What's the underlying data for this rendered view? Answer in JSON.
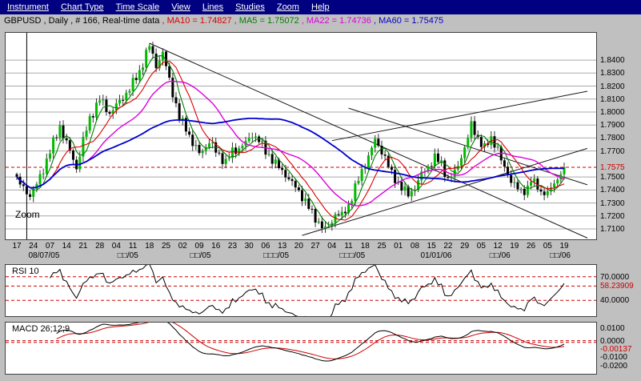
{
  "menu": {
    "bg": "#000080",
    "items": [
      "Instrument",
      "Chart Type",
      "Time Scale",
      "View",
      "Lines",
      "Studies",
      "Zoom",
      "Help"
    ]
  },
  "header": {
    "title": "GBPUSD , Daily , # 166, Real-time data ",
    "segments": [
      {
        "text": ", MA10 = 1.74827 ",
        "color": "#dd0000"
      },
      {
        "text": ", MA5 = 1.75072 ",
        "color": "#008000"
      },
      {
        "text": ", MA22 = 1.74736 ",
        "color": "#dd00dd"
      },
      {
        "text": ", MA60 = 1.75475",
        "color": "#0000cc"
      }
    ]
  },
  "main_chart": {
    "zoom_label": "Zoom",
    "price_labels": [
      {
        "text": "1.8400",
        "price": 1.84,
        "color": "#000000"
      },
      {
        "text": "1.8300",
        "price": 1.83,
        "color": "#000000"
      },
      {
        "text": "1.8200",
        "price": 1.82,
        "color": "#000000"
      },
      {
        "text": "1.8100",
        "price": 1.81,
        "color": "#000000"
      },
      {
        "text": "1.8000",
        "price": 1.8,
        "color": "#000000"
      },
      {
        "text": "1.7900",
        "price": 1.79,
        "color": "#000000"
      },
      {
        "text": "1.7800",
        "price": 1.78,
        "color": "#000000"
      },
      {
        "text": "1.7700",
        "price": 1.77,
        "color": "#000000"
      },
      {
        "text": "1.7575",
        "price": 1.7575,
        "color": "#cc0000"
      },
      {
        "text": "1.7500",
        "price": 1.75,
        "color": "#000000"
      },
      {
        "text": "1.7400",
        "price": 1.74,
        "color": "#000000"
      },
      {
        "text": "1.7300",
        "price": 1.73,
        "color": "#000000"
      },
      {
        "text": "1.7200",
        "price": 1.72,
        "color": "#000000"
      },
      {
        "text": "1.7100",
        "price": 1.71,
        "color": "#000000"
      }
    ]
  },
  "x_axis": {
    "week_ticks": [
      "17",
      "24",
      "07",
      "14",
      "21",
      "28",
      "04",
      "11",
      "18",
      "25",
      "02",
      "09",
      "16",
      "23",
      "30",
      "06",
      "13",
      "20",
      "27",
      "04",
      "11",
      "18",
      "25",
      "01",
      "08",
      "15",
      "22",
      "29",
      "05",
      "12",
      "19",
      "26",
      "05",
      "19"
    ],
    "month_labels": [
      {
        "text": "08/07/05",
        "pos": 0.065
      },
      {
        "text": "□□/05",
        "pos": 0.207
      },
      {
        "text": "□□/05",
        "pos": 0.33
      },
      {
        "text": "□□□/05",
        "pos": 0.458
      },
      {
        "text": "□□□/05",
        "pos": 0.587
      },
      {
        "text": "01/01/06",
        "pos": 0.729
      },
      {
        "text": "□□/06",
        "pos": 0.837
      },
      {
        "text": "□□/06",
        "pos": 0.939
      }
    ]
  },
  "rsi": {
    "label": "RSI 10",
    "range": [
      20,
      85
    ],
    "levels": [
      {
        "text": "70.0000",
        "value": 70,
        "color": "#000000",
        "dashed": true
      },
      {
        "text": "58.23909",
        "value": 58.23909,
        "color": "#cc0000",
        "dashed": true
      },
      {
        "text": "40.0000",
        "value": 40,
        "color": "#000000",
        "dashed": true
      }
    ]
  },
  "macd": {
    "label": "MACD 26;12;9",
    "range": [
      -0.0265,
      0.0145
    ],
    "levels": [
      {
        "text": "0.0100",
        "value": 0.01,
        "color": "#000000",
        "dashed": false
      },
      {
        "text": "0.0000",
        "value": 0.0,
        "color": "#000000",
        "dashed": true
      },
      {
        "text": "-0.00137",
        "value": -0.00137,
        "color": "#cc0000",
        "dashed": true
      },
      {
        "text": "-0.0100",
        "value": -0.01,
        "color": "#000000",
        "dashed": false
      },
      {
        "text": "-0.0200",
        "value": -0.02,
        "color": "#000000",
        "dashed": false
      }
    ]
  },
  "chart_data": {
    "type": "candlestick",
    "symbol": "GBPUSD",
    "timeframe": "Daily",
    "bar_count": 166,
    "data_feed": "Real-time data",
    "price_range": [
      1.702,
      1.861
    ],
    "last_price": 1.7575,
    "up_color": "#00bb00",
    "down_color": "#000000",
    "moving_averages": [
      {
        "name": "MA5",
        "period": 5,
        "last": 1.75072,
        "color": "#008000",
        "width": 1.1
      },
      {
        "name": "MA10",
        "period": 10,
        "last": 1.74827,
        "color": "#dd0000",
        "width": 1.1
      },
      {
        "name": "MA22",
        "period": 22,
        "last": 1.74736,
        "color": "#dd00dd",
        "width": 1.4
      },
      {
        "name": "MA60",
        "period": 60,
        "last": 1.75475,
        "color": "#0000cc",
        "width": 1.8
      }
    ],
    "close_anchors": [
      [
        0,
        1.748
      ],
      [
        2,
        1.741
      ],
      [
        4,
        1.736
      ],
      [
        6,
        1.744
      ],
      [
        8,
        1.756
      ],
      [
        10,
        1.77
      ],
      [
        13,
        1.789
      ],
      [
        15,
        1.776
      ],
      [
        18,
        1.757
      ],
      [
        20,
        1.778
      ],
      [
        22,
        1.795
      ],
      [
        25,
        1.81
      ],
      [
        28,
        1.799
      ],
      [
        31,
        1.808
      ],
      [
        34,
        1.818
      ],
      [
        37,
        1.831
      ],
      [
        39,
        1.845
      ],
      [
        40,
        1.851
      ],
      [
        42,
        1.836
      ],
      [
        44,
        1.845
      ],
      [
        47,
        1.815
      ],
      [
        49,
        1.795
      ],
      [
        51,
        1.788
      ],
      [
        53,
        1.776
      ],
      [
        55,
        1.768
      ],
      [
        58,
        1.777
      ],
      [
        60,
        1.77
      ],
      [
        63,
        1.761
      ],
      [
        65,
        1.77
      ],
      [
        67,
        1.772
      ],
      [
        69,
        1.776
      ],
      [
        71,
        1.783
      ],
      [
        73,
        1.778
      ],
      [
        75,
        1.77
      ],
      [
        78,
        1.76
      ],
      [
        81,
        1.752
      ],
      [
        83,
        1.745
      ],
      [
        85,
        1.739
      ],
      [
        87,
        1.731
      ],
      [
        89,
        1.722
      ],
      [
        91,
        1.715
      ],
      [
        93,
        1.709
      ],
      [
        95,
        1.716
      ],
      [
        96,
        1.722
      ],
      [
        98,
        1.72
      ],
      [
        100,
        1.728
      ],
      [
        101,
        1.735
      ],
      [
        103,
        1.748
      ],
      [
        105,
        1.76
      ],
      [
        107,
        1.772
      ],
      [
        108,
        1.778
      ],
      [
        110,
        1.77
      ],
      [
        111,
        1.765
      ],
      [
        113,
        1.752
      ],
      [
        116,
        1.742
      ],
      [
        118,
        1.736
      ],
      [
        120,
        1.742
      ],
      [
        122,
        1.752
      ],
      [
        124,
        1.758
      ],
      [
        126,
        1.765
      ],
      [
        128,
        1.76
      ],
      [
        130,
        1.748
      ],
      [
        132,
        1.753
      ],
      [
        134,
        1.766
      ],
      [
        136,
        1.78
      ],
      [
        137,
        1.79
      ],
      [
        139,
        1.78
      ],
      [
        141,
        1.772
      ],
      [
        143,
        1.78
      ],
      [
        145,
        1.772
      ],
      [
        146,
        1.762
      ],
      [
        148,
        1.752
      ],
      [
        150,
        1.744
      ],
      [
        152,
        1.738
      ],
      [
        154,
        1.742
      ],
      [
        155,
        1.748
      ],
      [
        157,
        1.742
      ],
      [
        159,
        1.736
      ],
      [
        161,
        1.742
      ],
      [
        163,
        1.748
      ],
      [
        164,
        1.752
      ],
      [
        165,
        1.7575
      ]
    ],
    "trendlines": [
      {
        "from": [
          86,
          1.705
        ],
        "to": [
          172,
          1.772
        ]
      },
      {
        "from": [
          95,
          1.778
        ],
        "to": [
          172,
          1.816
        ]
      },
      {
        "from": [
          40,
          1.853
        ],
        "to": [
          172,
          1.703
        ]
      },
      {
        "from": [
          100,
          1.803
        ],
        "to": [
          172,
          1.744
        ]
      }
    ],
    "vertical_marker_bar": 3,
    "indicators": [
      {
        "name": "RSI",
        "period": 10,
        "last": 58.23909,
        "guides": [
          70,
          58.23909,
          40
        ]
      },
      {
        "name": "MACD",
        "params": "26;12;9",
        "last": -0.00137,
        "guides": [
          0.0,
          -0.00137
        ]
      }
    ]
  }
}
